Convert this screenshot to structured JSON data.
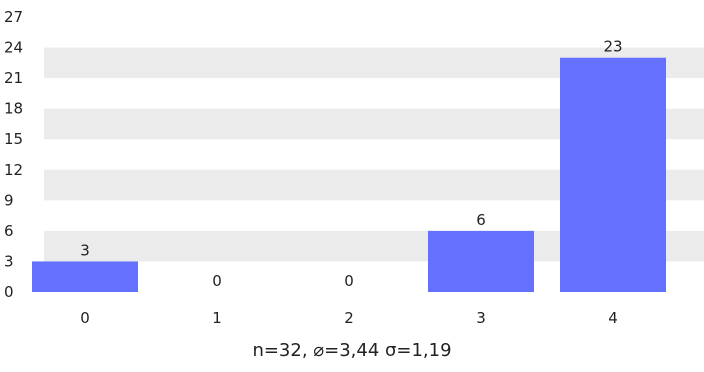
{
  "chart_data": {
    "type": "bar",
    "categories": [
      "0",
      "1",
      "2",
      "3",
      "4"
    ],
    "values": [
      3,
      0,
      0,
      6,
      23
    ],
    "data_labels": [
      "3",
      "0",
      "0",
      "6",
      "23"
    ],
    "y_ticks": [
      "0",
      "3",
      "6",
      "9",
      "12",
      "15",
      "18",
      "21",
      "24",
      "27"
    ],
    "ylim": [
      0,
      27
    ],
    "grid": "horizontal alternating bands",
    "title": "",
    "xlabel": "",
    "ylabel": "",
    "bar_color": "#6471ff",
    "band_color": "#ebebeb"
  },
  "stats": {
    "text": "n=32, ⌀=3,44 σ=1,19"
  }
}
